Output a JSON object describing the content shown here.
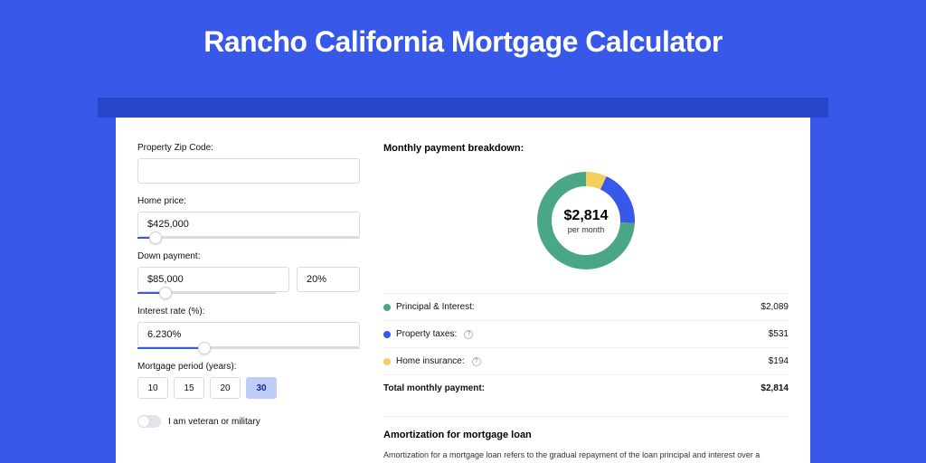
{
  "page": {
    "title": "Rancho California Mortgage Calculator",
    "background_color": "#3858e9",
    "banner_color": "#2746c9",
    "card_background": "#ffffff"
  },
  "form": {
    "zip": {
      "label": "Property Zip Code:",
      "value": ""
    },
    "home_price": {
      "label": "Home price:",
      "value": "$425,000",
      "slider_fill_pct": 8
    },
    "down_payment": {
      "label": "Down payment:",
      "amount": "$85,000",
      "percent": "20%",
      "slider_fill_pct": 20
    },
    "interest_rate": {
      "label": "Interest rate (%):",
      "value": "6.230%",
      "slider_fill_pct": 30
    },
    "period": {
      "label": "Mortgage period (years):",
      "options": [
        "10",
        "15",
        "20",
        "30"
      ],
      "selected": "30"
    },
    "veteran": {
      "label": "I am veteran or military",
      "on": false
    }
  },
  "breakdown": {
    "title": "Monthly payment breakdown:",
    "donut": {
      "amount": "$2,814",
      "sub": "per month",
      "thickness": 16,
      "slices": [
        {
          "label": "Principal & Interest:",
          "value": "$2,089",
          "color": "#4aa786",
          "pct": 74.2,
          "info": false
        },
        {
          "label": "Property taxes:",
          "value": "$531",
          "color": "#3858e9",
          "pct": 18.9,
          "info": true
        },
        {
          "label": "Home insurance:",
          "value": "$194",
          "color": "#f0cf5c",
          "pct": 6.9,
          "info": true
        }
      ],
      "track_color": "#eceef2"
    },
    "total": {
      "label": "Total monthly payment:",
      "value": "$2,814"
    }
  },
  "amortization": {
    "title": "Amortization for mortgage loan",
    "text": "Amortization for a mortgage loan refers to the gradual repayment of the loan principal and interest over a specified"
  }
}
